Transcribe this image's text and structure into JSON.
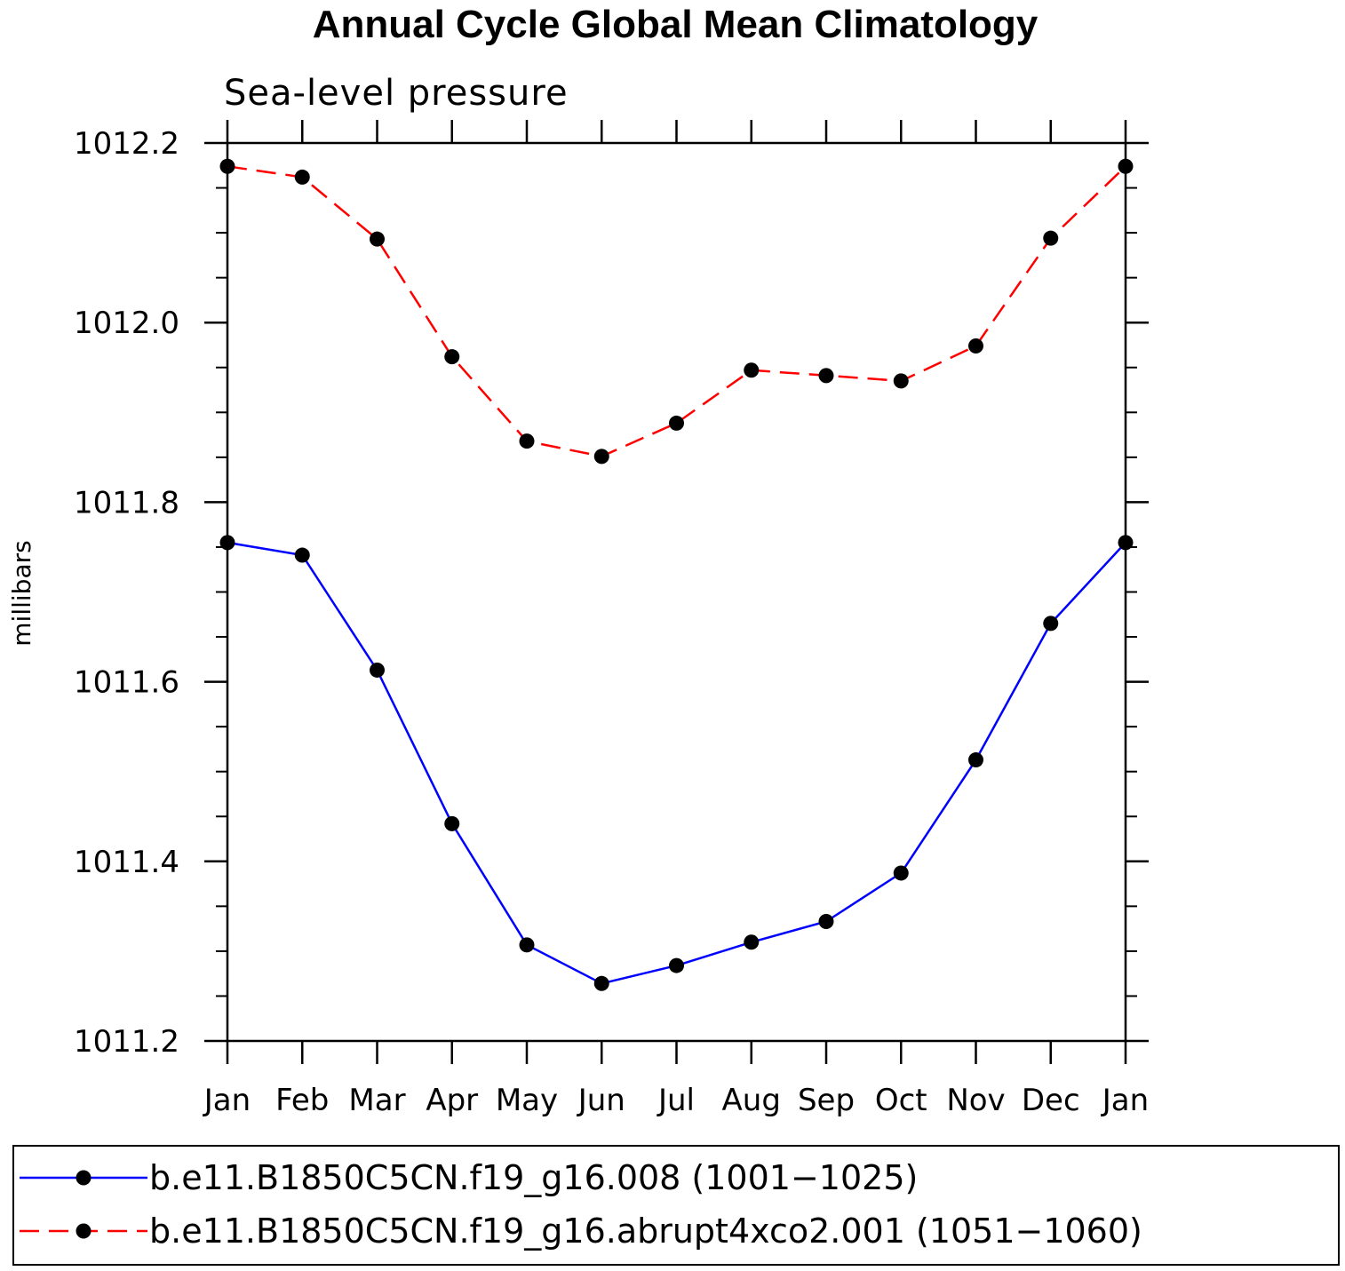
{
  "chart_data": {
    "type": "line",
    "title": "Annual Cycle Global Mean Climatology",
    "subtitle": "Sea-level pressure",
    "ylabel": "millibars",
    "xlabel": "",
    "categories": [
      "Jan",
      "Feb",
      "Mar",
      "Apr",
      "May",
      "Jun",
      "Jul",
      "Aug",
      "Sep",
      "Oct",
      "Nov",
      "Dec",
      "Jan"
    ],
    "ylim": [
      1011.2,
      1012.2
    ],
    "yticks": [
      "1011.2",
      "1011.4",
      "1011.6",
      "1011.8",
      "1012.0",
      "1012.2"
    ],
    "ytick_values": [
      1011.2,
      1011.4,
      1011.6,
      1011.8,
      1012.0,
      1012.2
    ],
    "yminor_step": 0.05,
    "grid": false,
    "legend_position": "bottom",
    "series": [
      {
        "name": "b.e11.B1850C5CN.f19_g16.008 (1001−1025)",
        "color": "#0000ff",
        "dash": "solid",
        "marker_color": "#000000",
        "values": [
          1011.755,
          1011.741,
          1011.613,
          1011.442,
          1011.307,
          1011.264,
          1011.284,
          1011.31,
          1011.333,
          1011.387,
          1011.513,
          1011.665,
          1011.755
        ]
      },
      {
        "name": "b.e11.B1850C5CN.f19_g16.abrupt4xco2.001 (1051−1060)",
        "color": "#ff0000",
        "dash": "dashed",
        "marker_color": "#000000",
        "values": [
          1012.174,
          1012.162,
          1012.093,
          1011.962,
          1011.868,
          1011.851,
          1011.888,
          1011.947,
          1011.941,
          1011.935,
          1011.974,
          1012.094,
          1012.174
        ]
      }
    ]
  }
}
